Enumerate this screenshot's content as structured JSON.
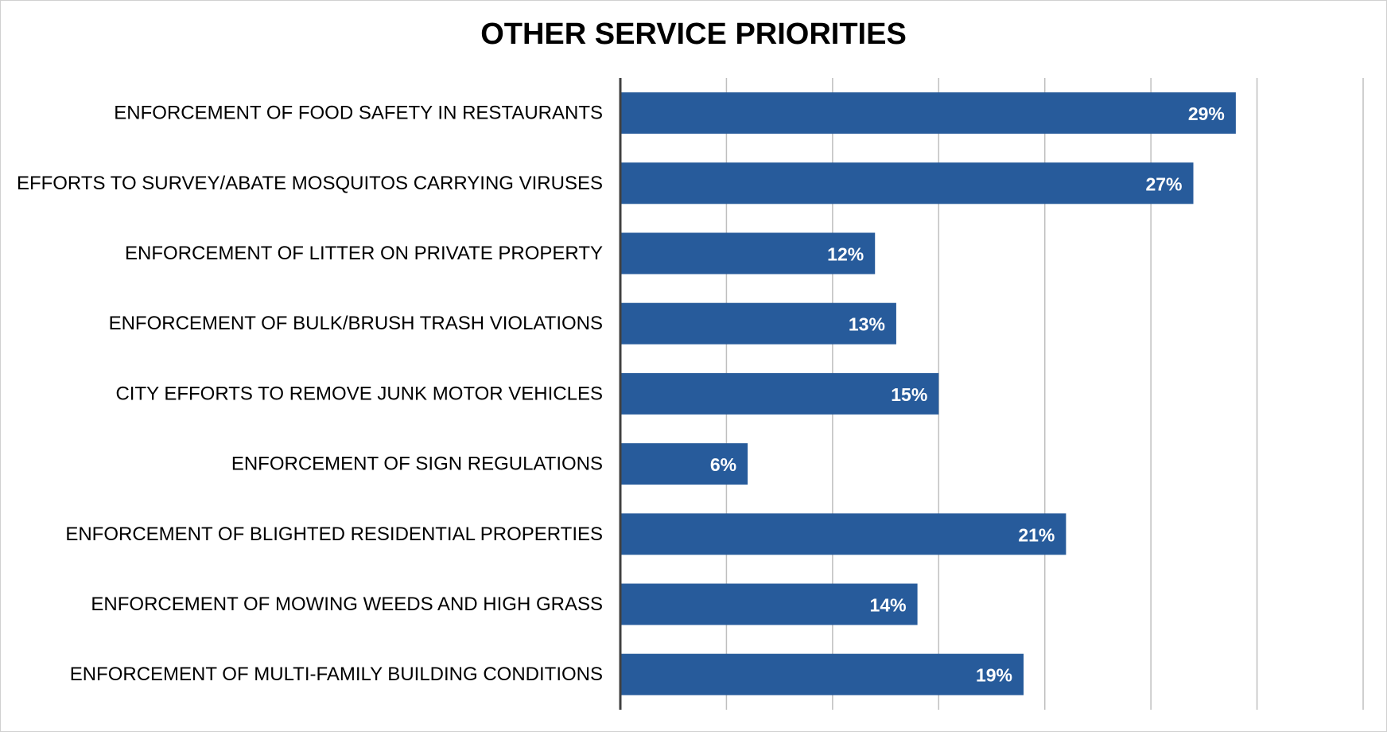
{
  "chart_data": {
    "type": "bar",
    "orientation": "horizontal",
    "title": "OTHER SERVICE PRIORITIES",
    "xlabel": "",
    "ylabel": "",
    "categories": [
      "ENFORCEMENT OF FOOD SAFETY IN RESTAURANTS",
      "EFFORTS TO SURVEY/ABATE MOSQUITOS CARRYING VIRUSES",
      "ENFORCEMENT OF LITTER ON PRIVATE PROPERTY",
      "ENFORCEMENT OF BULK/BRUSH TRASH VIOLATIONS",
      "CITY EFFORTS TO REMOVE JUNK MOTOR VEHICLES",
      "ENFORCEMENT OF SIGN REGULATIONS",
      "ENFORCEMENT OF BLIGHTED RESIDENTIAL PROPERTIES",
      "ENFORCEMENT OF MOWING WEEDS AND HIGH GRASS",
      "ENFORCEMENT OF MULTI-FAMILY BUILDING CONDITIONS"
    ],
    "values": [
      29,
      27,
      12,
      13,
      15,
      6,
      21,
      14,
      19
    ],
    "value_labels": [
      "29%",
      "27%",
      "12%",
      "13%",
      "15%",
      "6%",
      "21%",
      "14%",
      "19%"
    ],
    "xlim": [
      0,
      35
    ],
    "gridlines_at": [
      5,
      10,
      15,
      20,
      25,
      30,
      35
    ],
    "grid": true,
    "legend": "none",
    "bar_color": "#275B9B",
    "axis_color": "#404040",
    "grid_color": "#BFBFBF"
  }
}
